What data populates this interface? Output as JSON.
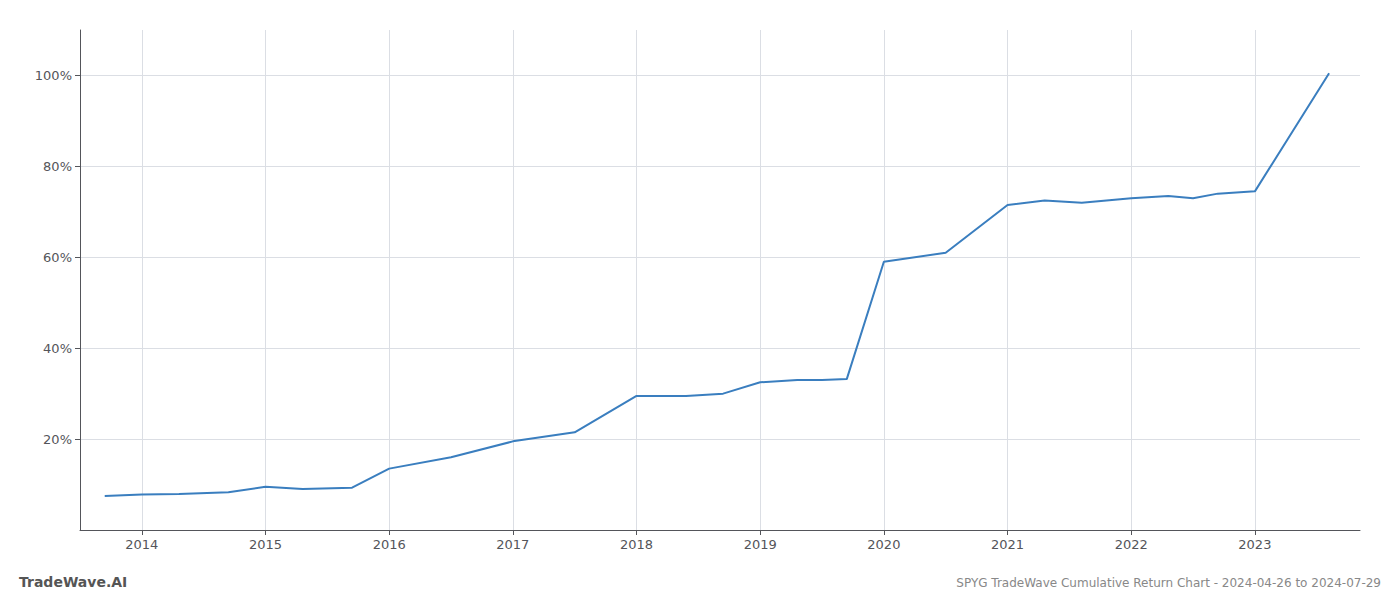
{
  "chart_data": {
    "type": "line",
    "title": "SPYG TradeWave Cumulative Return Chart - 2024-04-26 to 2024-07-29",
    "annotations": [
      "TradeWave.AI"
    ],
    "x": [
      2013.7,
      2014.0,
      2014.3,
      2014.7,
      2015.0,
      2015.3,
      2015.7,
      2016.0,
      2016.5,
      2017.0,
      2017.5,
      2018.0,
      2018.4,
      2018.7,
      2019.0,
      2019.3,
      2019.5,
      2019.7,
      2020.0,
      2020.5,
      2021.0,
      2021.3,
      2021.6,
      2022.0,
      2022.3,
      2022.5,
      2022.7,
      2023.0,
      2023.6
    ],
    "values": [
      0.075,
      0.078,
      0.079,
      0.083,
      0.095,
      0.09,
      0.093,
      0.135,
      0.16,
      0.195,
      0.215,
      0.295,
      0.295,
      0.3,
      0.325,
      0.33,
      0.33,
      0.332,
      0.59,
      0.61,
      0.715,
      0.725,
      0.72,
      0.73,
      0.735,
      0.73,
      0.74,
      0.745,
      1.005
    ],
    "color": "#3a7ebf",
    "xlim": [
      2013.5,
      2023.85
    ],
    "xticks": [
      2014,
      2015,
      2016,
      2017,
      2018,
      2019,
      2020,
      2021,
      2022,
      2023
    ],
    "ylim": [
      0.0,
      1.1
    ],
    "yticks": [
      {
        "value": 0.2,
        "label": "20%"
      },
      {
        "value": 0.4,
        "label": "40%"
      },
      {
        "value": 0.6,
        "label": "60%"
      },
      {
        "value": 0.8,
        "label": "80%"
      },
      {
        "value": 1.0,
        "label": "100%"
      }
    ],
    "grid": true
  }
}
